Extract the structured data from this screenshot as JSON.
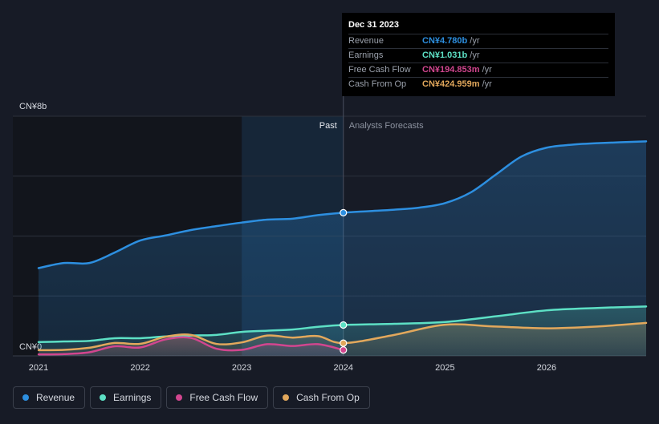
{
  "chart_data": {
    "type": "area",
    "y_max_label": "CN¥8b",
    "y_min_label": "CN¥0",
    "ylim": [
      0,
      8
    ],
    "xlim": [
      2021.0,
      2026.98
    ],
    "x_ticks": [
      {
        "value": 2021,
        "label": "2021"
      },
      {
        "value": 2022,
        "label": "2022"
      },
      {
        "value": 2023,
        "label": "2023"
      },
      {
        "value": 2024,
        "label": "2024"
      },
      {
        "value": 2025,
        "label": "2025"
      },
      {
        "value": 2026,
        "label": "2026"
      }
    ],
    "past_label": "Past",
    "forecast_label": "Analysts Forecasts",
    "divider_x": 2024.0,
    "highlight_start_x": 2023.0,
    "series": [
      {
        "name": "Revenue",
        "color": "#2d8fe0",
        "fill": true,
        "points": [
          [
            2021.0,
            2.93
          ],
          [
            2021.25,
            3.1
          ],
          [
            2021.5,
            3.1
          ],
          [
            2021.75,
            3.45
          ],
          [
            2022.0,
            3.85
          ],
          [
            2022.25,
            4.02
          ],
          [
            2022.5,
            4.2
          ],
          [
            2022.75,
            4.33
          ],
          [
            2023.0,
            4.45
          ],
          [
            2023.25,
            4.55
          ],
          [
            2023.5,
            4.58
          ],
          [
            2023.75,
            4.7
          ],
          [
            2024.0,
            4.78
          ],
          [
            2024.25,
            4.83
          ],
          [
            2024.5,
            4.88
          ],
          [
            2024.75,
            4.95
          ],
          [
            2025.0,
            5.1
          ],
          [
            2025.25,
            5.45
          ],
          [
            2025.5,
            6.05
          ],
          [
            2025.75,
            6.65
          ],
          [
            2026.0,
            6.95
          ],
          [
            2026.25,
            7.05
          ],
          [
            2026.5,
            7.1
          ],
          [
            2026.98,
            7.16
          ]
        ]
      },
      {
        "name": "Earnings",
        "color": "#5de0c5",
        "fill": true,
        "points": [
          [
            2021.0,
            0.46
          ],
          [
            2021.25,
            0.48
          ],
          [
            2021.5,
            0.5
          ],
          [
            2021.75,
            0.59
          ],
          [
            2022.0,
            0.59
          ],
          [
            2022.25,
            0.65
          ],
          [
            2022.5,
            0.68
          ],
          [
            2022.75,
            0.7
          ],
          [
            2023.0,
            0.8
          ],
          [
            2023.25,
            0.84
          ],
          [
            2023.5,
            0.88
          ],
          [
            2023.75,
            0.97
          ],
          [
            2024.0,
            1.031
          ],
          [
            2024.5,
            1.07
          ],
          [
            2025.0,
            1.13
          ],
          [
            2025.5,
            1.32
          ],
          [
            2026.0,
            1.52
          ],
          [
            2026.5,
            1.6
          ],
          [
            2026.98,
            1.65
          ]
        ]
      },
      {
        "name": "Free Cash Flow",
        "color": "#d2468f",
        "fill": true,
        "points": [
          [
            2021.0,
            0.05
          ],
          [
            2021.25,
            0.06
          ],
          [
            2021.5,
            0.12
          ],
          [
            2021.75,
            0.32
          ],
          [
            2022.0,
            0.28
          ],
          [
            2022.25,
            0.55
          ],
          [
            2022.5,
            0.6
          ],
          [
            2022.75,
            0.24
          ],
          [
            2023.0,
            0.2
          ],
          [
            2023.25,
            0.39
          ],
          [
            2023.5,
            0.33
          ],
          [
            2023.75,
            0.39
          ],
          [
            2024.0,
            0.195
          ]
        ]
      },
      {
        "name": "Cash From Op",
        "color": "#e2a85c",
        "fill": true,
        "points": [
          [
            2021.0,
            0.19
          ],
          [
            2021.25,
            0.2
          ],
          [
            2021.5,
            0.27
          ],
          [
            2021.75,
            0.43
          ],
          [
            2022.0,
            0.4
          ],
          [
            2022.25,
            0.64
          ],
          [
            2022.5,
            0.7
          ],
          [
            2022.75,
            0.4
          ],
          [
            2023.0,
            0.45
          ],
          [
            2023.25,
            0.68
          ],
          [
            2023.5,
            0.61
          ],
          [
            2023.75,
            0.66
          ],
          [
            2024.0,
            0.425
          ],
          [
            2024.5,
            0.7
          ],
          [
            2025.0,
            1.04
          ],
          [
            2025.5,
            0.98
          ],
          [
            2026.0,
            0.92
          ],
          [
            2026.5,
            0.98
          ],
          [
            2026.98,
            1.1
          ]
        ]
      }
    ],
    "tooltip": {
      "date": "Dec 31 2023",
      "x": 2024.0,
      "unit": "/yr",
      "rows": [
        {
          "label": "Revenue",
          "value": "CN¥4.780b",
          "color": "#2d8fe0"
        },
        {
          "label": "Earnings",
          "value": "CN¥1.031b",
          "color": "#5de0c5"
        },
        {
          "label": "Free Cash Flow",
          "value": "CN¥194.853m",
          "color": "#d2468f"
        },
        {
          "label": "Cash From Op",
          "value": "CN¥424.959m",
          "color": "#e2a85c"
        }
      ]
    },
    "legend": [
      {
        "label": "Revenue",
        "color": "#2d8fe0"
      },
      {
        "label": "Earnings",
        "color": "#5de0c5"
      },
      {
        "label": "Free Cash Flow",
        "color": "#d2468f"
      },
      {
        "label": "Cash From Op",
        "color": "#e2a85c"
      }
    ]
  }
}
